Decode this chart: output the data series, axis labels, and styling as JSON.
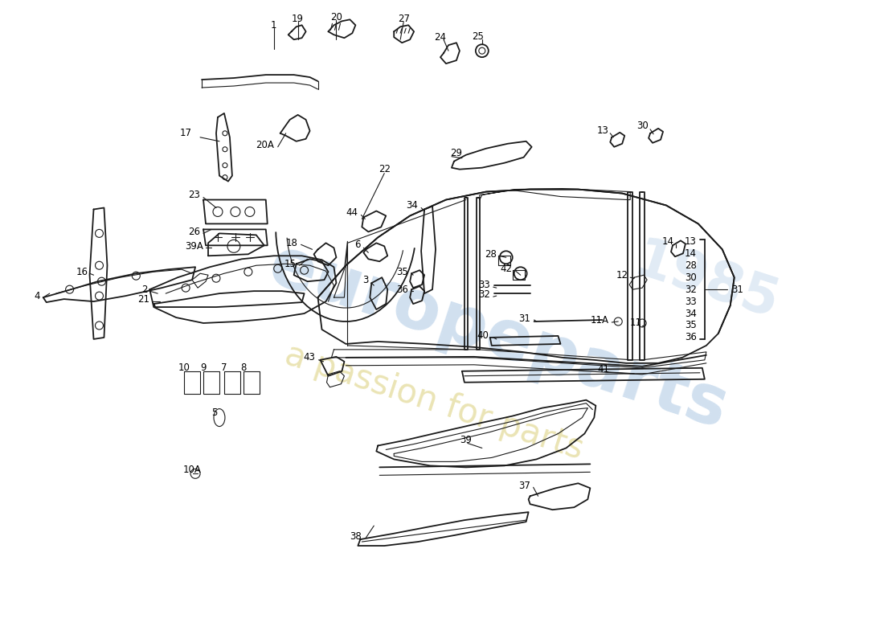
{
  "bg_color": "#ffffff",
  "line_color": "#1a1a1a",
  "wm1_color": "#6699cc",
  "wm2_color": "#ccbb44",
  "wm1_alpha": 0.3,
  "wm2_alpha": 0.4,
  "figsize": [
    11.0,
    8.0
  ],
  "dpi": 100,
  "xlim": [
    0,
    1100
  ],
  "ylim": [
    0,
    800
  ]
}
